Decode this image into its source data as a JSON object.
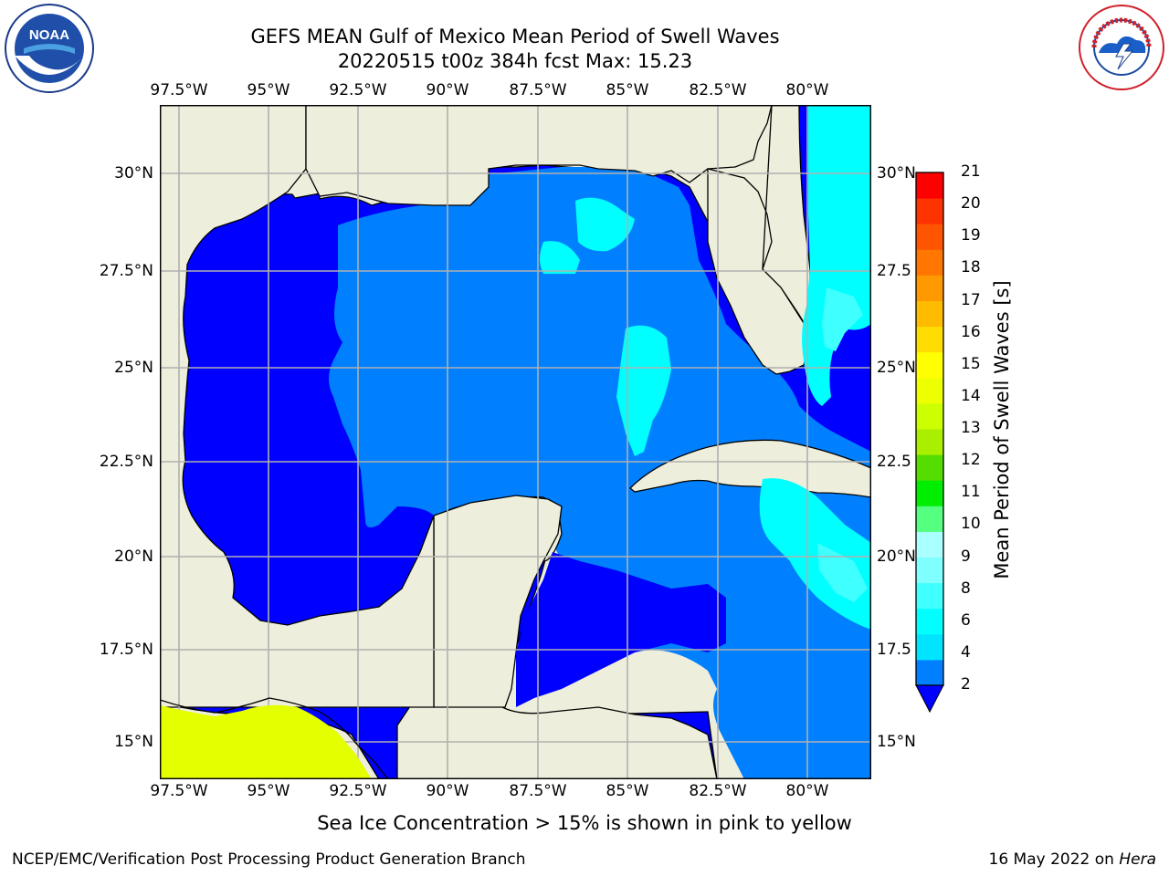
{
  "title": {
    "line1": "GEFS MEAN Gulf of Mexico Mean Period of Swell Waves",
    "line2": "20220515 t00z 384h fcst   Max: 15.23"
  },
  "map": {
    "lon_labels": [
      "97.5°W",
      "95°W",
      "92.5°W",
      "90°W",
      "87.5°W",
      "85°W",
      "82.5°W",
      "80°W"
    ],
    "lat_labels": [
      "30°N",
      "27.5°N",
      "25°N",
      "22.5°N",
      "20°N",
      "17.5°N",
      "15°N"
    ],
    "lat_labels_right": [
      "30°N",
      "27.5",
      "25°N",
      "22.5",
      "20°N",
      "17.5",
      "15°N"
    ],
    "land_color": "#eeeedd",
    "grid_color": "#b0b0b0"
  },
  "colorbar": {
    "title": "Mean Period of Swell Waves [s]",
    "ticks": [
      "21",
      "20",
      "19",
      "18",
      "17",
      "16",
      "15",
      "14",
      "13",
      "12",
      "11",
      "10",
      "9",
      "8",
      "6",
      "4",
      "2"
    ],
    "colors_bottom_to_top": [
      "#0080ff",
      "#00e4ff",
      "#00ffff",
      "#40ffff",
      "#80ffff",
      "#aaffff",
      "#55ff80",
      "#00ee00",
      "#55dd00",
      "#aaee00",
      "#ccff00",
      "#eeff00",
      "#ffff00",
      "#ffdd00",
      "#ffbb00",
      "#ff9900",
      "#ff7700",
      "#ff5500",
      "#ff3300",
      "#ff0000"
    ],
    "extend_color": "#0000ff"
  },
  "logos": {
    "noaa": {
      "text": "NOAA",
      "ring_text": "NATIONAL OCEANIC AND ATMOSPHERIC ADMINISTRATION · U.S. DEPARTMENT OF COMMERCE"
    },
    "nws": {
      "ring_text": "NATIONAL WEATHER SERVICE"
    }
  },
  "note": "Sea Ice Concentration > 15% is shown in pink to yellow",
  "footer": {
    "left": "NCEP/EMC/Verification Post Processing Product Generation Branch",
    "right_date": "16 May 2022 on ",
    "right_machine": "Hera"
  }
}
